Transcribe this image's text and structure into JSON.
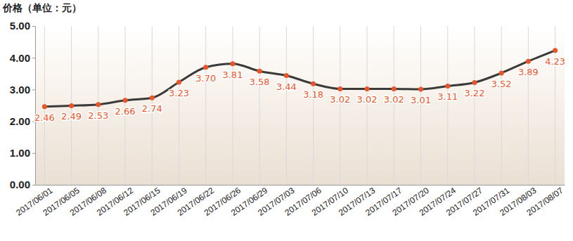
{
  "chart_data": {
    "type": "line",
    "y_label": "价格（单位：元）",
    "categories": [
      "2017/06/01",
      "2017/06/05",
      "2017/06/08",
      "2017/06/12",
      "2017/06/15",
      "2017/06/19",
      "2017/06/22",
      "2017/06/26",
      "2017/06/29",
      "2017/07/03",
      "2017/07/06",
      "2017/07/10",
      "2017/07/13",
      "2017/07/17",
      "2017/07/20",
      "2017/07/24",
      "2017/07/27",
      "2017/07/31",
      "2017/08/03",
      "2017/08/07"
    ],
    "values": [
      2.46,
      2.49,
      2.53,
      2.66,
      2.74,
      3.23,
      3.7,
      3.81,
      3.58,
      3.44,
      3.18,
      3.02,
      3.02,
      3.02,
      3.01,
      3.11,
      3.22,
      3.52,
      3.89,
      4.23
    ],
    "value_labels": [
      "2.46",
      "2.49",
      "2.53",
      "2.66",
      "2.74",
      "3.23",
      "3.70",
      "3.81",
      "3.58",
      "3.44",
      "3.18",
      "3.02",
      "3.02",
      "3.02",
      "3.01",
      "3.11",
      "3.22",
      "3.52",
      "3.89",
      "4.23"
    ],
    "color": "#e8552a",
    "marker": "circle",
    "ylim": [
      0,
      5
    ],
    "yticks": [
      {
        "value": 0,
        "label": "0.00"
      },
      {
        "value": 1,
        "label": "1.00"
      },
      {
        "value": 2,
        "label": "2.00"
      },
      {
        "value": 3,
        "label": "3.00"
      },
      {
        "value": 4,
        "label": "4.00"
      },
      {
        "value": 5,
        "label": "5.00"
      }
    ],
    "grid": true,
    "data_labels": true
  }
}
